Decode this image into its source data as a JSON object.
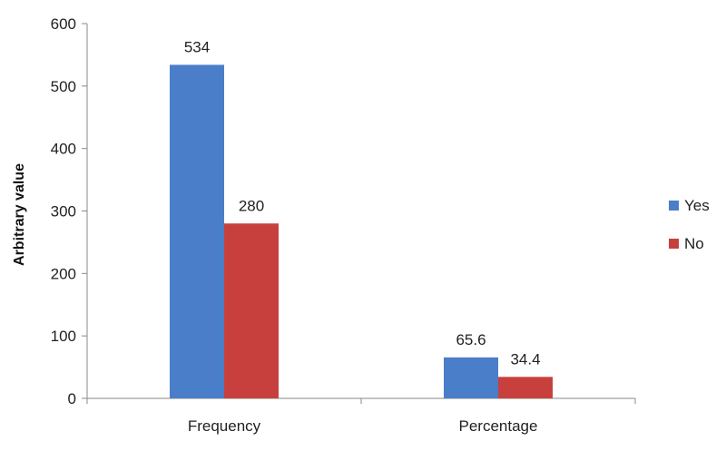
{
  "chart_data": {
    "type": "bar",
    "categories": [
      "Frequency",
      "Percentage"
    ],
    "series": [
      {
        "name": "Yes",
        "color": "#4A7EC8",
        "values": [
          534,
          65.6
        ],
        "labels": [
          "534",
          "65.6"
        ]
      },
      {
        "name": "No",
        "color": "#C8403D",
        "values": [
          280,
          34.4
        ],
        "labels": [
          "280",
          "34.4"
        ]
      }
    ],
    "ylabel": "Arbitrary value",
    "xlabel": "",
    "ylim": [
      0,
      600
    ],
    "yticks": [
      0,
      100,
      200,
      300,
      400,
      500,
      600
    ],
    "grid": false,
    "legend_position": "right"
  }
}
